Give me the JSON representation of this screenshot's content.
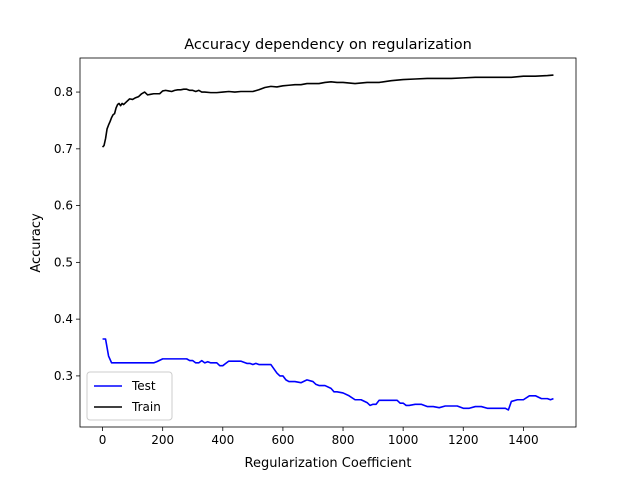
{
  "chart_data": {
    "type": "line",
    "title": "Accuracy dependency on regularization",
    "xlabel": "Regularization Coefficient",
    "ylabel": "Accuracy",
    "xlim": [
      -75,
      1575
    ],
    "ylim": [
      0.21,
      0.86
    ],
    "xticks": [
      0,
      200,
      400,
      600,
      800,
      1000,
      1200,
      1400
    ],
    "yticks": [
      0.3,
      0.4,
      0.5,
      0.6,
      0.7,
      0.8
    ],
    "xtick_labels": [
      "0",
      "200",
      "400",
      "600",
      "800",
      "1000",
      "1200",
      "1400"
    ],
    "ytick_labels": [
      "0.3",
      "0.4",
      "0.5",
      "0.6",
      "0.7",
      "0.8"
    ],
    "grid": false,
    "legend_position": "lower-left",
    "series": [
      {
        "name": "Test",
        "color": "#0000ff",
        "x": [
          0,
          10,
          20,
          30,
          40,
          60,
          80,
          100,
          120,
          140,
          160,
          170,
          180,
          200,
          220,
          240,
          260,
          280,
          290,
          300,
          310,
          320,
          330,
          340,
          350,
          360,
          370,
          380,
          390,
          400,
          410,
          420,
          440,
          460,
          480,
          490,
          500,
          510,
          520,
          540,
          560,
          580,
          590,
          600,
          610,
          620,
          640,
          660,
          680,
          700,
          710,
          720,
          740,
          760,
          770,
          780,
          800,
          820,
          840,
          860,
          880,
          890,
          900,
          910,
          920,
          940,
          960,
          980,
          990,
          1000,
          1010,
          1020,
          1040,
          1060,
          1080,
          1100,
          1120,
          1140,
          1160,
          1180,
          1200,
          1220,
          1240,
          1260,
          1280,
          1300,
          1320,
          1340,
          1350,
          1360,
          1380,
          1400,
          1420,
          1440,
          1460,
          1480,
          1490,
          1500
        ],
        "y": [
          0.365,
          0.365,
          0.335,
          0.323,
          0.323,
          0.323,
          0.323,
          0.323,
          0.323,
          0.323,
          0.323,
          0.323,
          0.325,
          0.33,
          0.33,
          0.33,
          0.33,
          0.33,
          0.327,
          0.327,
          0.323,
          0.323,
          0.327,
          0.323,
          0.325,
          0.323,
          0.323,
          0.323,
          0.318,
          0.318,
          0.322,
          0.326,
          0.326,
          0.326,
          0.322,
          0.322,
          0.32,
          0.322,
          0.32,
          0.32,
          0.32,
          0.305,
          0.3,
          0.3,
          0.293,
          0.29,
          0.29,
          0.288,
          0.293,
          0.29,
          0.285,
          0.283,
          0.283,
          0.278,
          0.272,
          0.272,
          0.27,
          0.265,
          0.258,
          0.258,
          0.253,
          0.248,
          0.25,
          0.25,
          0.257,
          0.257,
          0.257,
          0.257,
          0.252,
          0.252,
          0.248,
          0.248,
          0.25,
          0.25,
          0.246,
          0.246,
          0.244,
          0.247,
          0.247,
          0.247,
          0.243,
          0.243,
          0.246,
          0.246,
          0.243,
          0.243,
          0.243,
          0.243,
          0.24,
          0.255,
          0.258,
          0.258,
          0.265,
          0.265,
          0.26,
          0.26,
          0.258,
          0.26
        ]
      },
      {
        "name": "Train",
        "color": "#000000",
        "x": [
          0,
          5,
          10,
          15,
          20,
          25,
          30,
          35,
          40,
          45,
          50,
          55,
          60,
          65,
          70,
          80,
          90,
          100,
          110,
          120,
          130,
          140,
          150,
          160,
          170,
          180,
          190,
          200,
          210,
          220,
          230,
          240,
          250,
          260,
          270,
          280,
          290,
          300,
          310,
          320,
          330,
          340,
          360,
          380,
          400,
          420,
          440,
          460,
          480,
          500,
          520,
          540,
          560,
          580,
          600,
          620,
          640,
          660,
          680,
          700,
          720,
          740,
          760,
          780,
          800,
          840,
          880,
          920,
          960,
          1000,
          1040,
          1080,
          1120,
          1160,
          1200,
          1240,
          1280,
          1320,
          1360,
          1400,
          1440,
          1480,
          1500
        ],
        "y": [
          0.703,
          0.706,
          0.718,
          0.735,
          0.742,
          0.748,
          0.755,
          0.76,
          0.762,
          0.772,
          0.778,
          0.78,
          0.776,
          0.78,
          0.778,
          0.783,
          0.788,
          0.787,
          0.79,
          0.792,
          0.797,
          0.8,
          0.795,
          0.796,
          0.797,
          0.797,
          0.797,
          0.802,
          0.803,
          0.802,
          0.801,
          0.803,
          0.804,
          0.804,
          0.805,
          0.805,
          0.803,
          0.803,
          0.801,
          0.803,
          0.8,
          0.8,
          0.799,
          0.799,
          0.8,
          0.801,
          0.8,
          0.801,
          0.801,
          0.801,
          0.804,
          0.808,
          0.81,
          0.809,
          0.811,
          0.812,
          0.813,
          0.813,
          0.815,
          0.815,
          0.815,
          0.817,
          0.818,
          0.817,
          0.817,
          0.815,
          0.817,
          0.817,
          0.82,
          0.822,
          0.823,
          0.824,
          0.824,
          0.824,
          0.825,
          0.826,
          0.826,
          0.826,
          0.826,
          0.828,
          0.828,
          0.829,
          0.83
        ]
      }
    ]
  }
}
